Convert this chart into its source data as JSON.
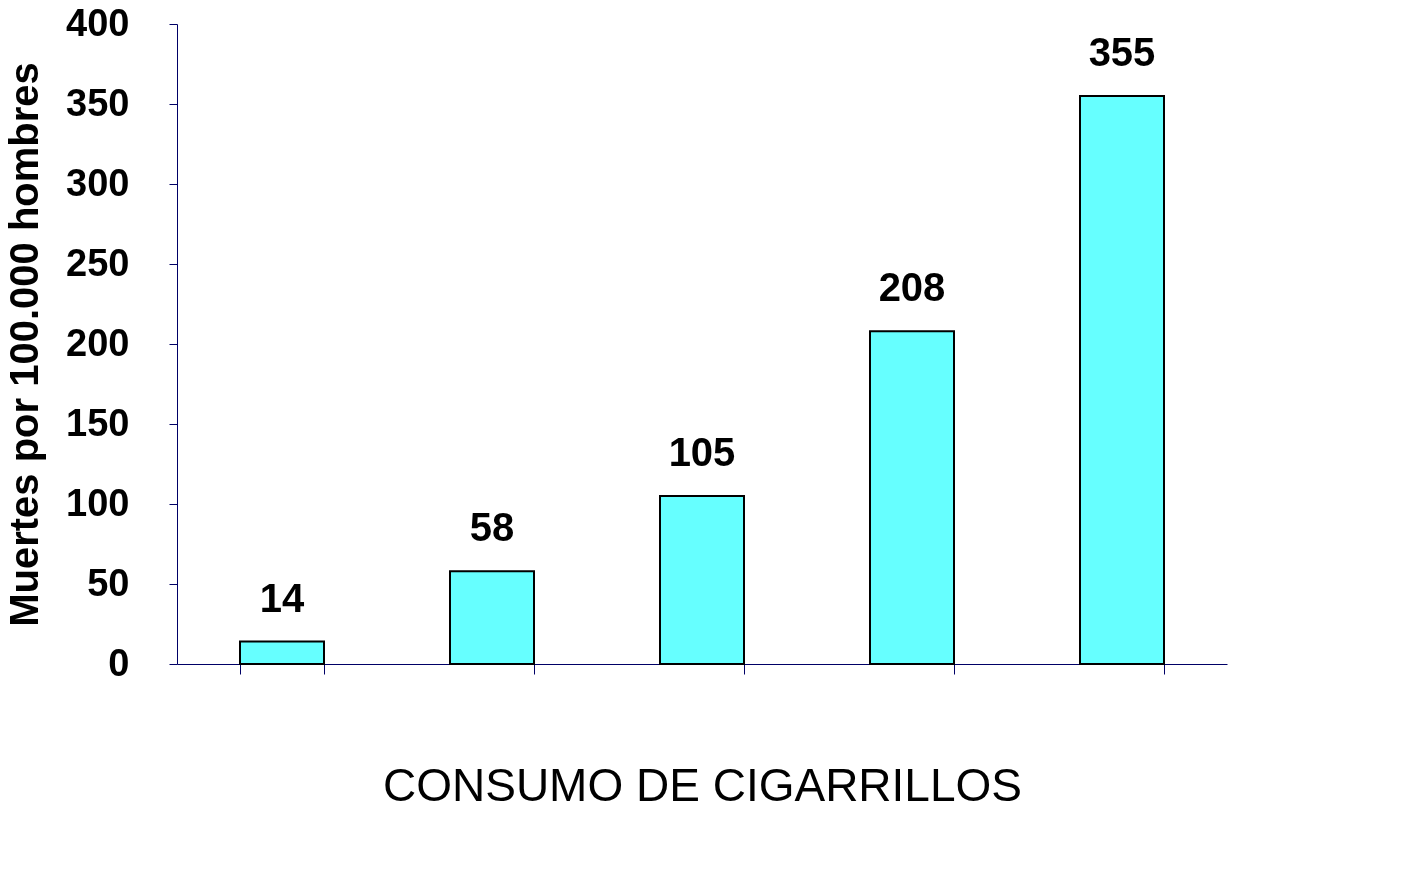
{
  "chart_data": {
    "type": "bar",
    "xlabel": "CONSUMO DE CIGARRILLOS",
    "ylabel": "Muertes por 100.000 hombres",
    "categories": [
      null,
      null,
      null,
      null,
      null
    ],
    "values": [
      14,
      58,
      105,
      208,
      355
    ],
    "color": "#66ffff",
    "ylim": [
      0,
      400
    ],
    "yticks": [
      0,
      50,
      100,
      150,
      200,
      250,
      300,
      350,
      400
    ],
    "data_labels": true,
    "grid": false,
    "tick_labels": "y"
  }
}
